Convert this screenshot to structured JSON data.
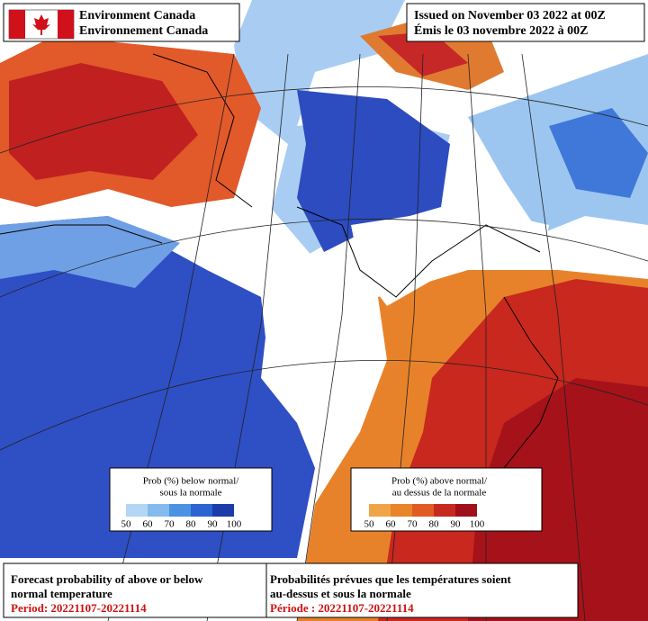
{
  "header": {
    "agency_en": "Environment Canada",
    "agency_fr": "Environnement Canada",
    "issued_en": "Issued on November 03 2022 at 00Z",
    "issued_fr": "Émis le 03 novembre 2022 à 00Z"
  },
  "legend_below": {
    "title_1": "Prob (%) below normal/",
    "title_2": "sous la normale",
    "ticks": [
      "50",
      "60",
      "70",
      "80",
      "90",
      "100"
    ]
  },
  "legend_above": {
    "title_1": "Prob (%) above normal/",
    "title_2": "au dessus de la normale",
    "ticks": [
      "50",
      "60",
      "70",
      "80",
      "90",
      "100"
    ]
  },
  "footer": {
    "en_1": "Forecast probability of above or below",
    "en_2": "normal temperature",
    "en_period": "Period: 20221107-20221114",
    "fr_1": "Probabilités prévues que les températures soient",
    "fr_2": "au-dessus et sous la normale",
    "fr_period": "Période : 20221107-20221114"
  }
}
